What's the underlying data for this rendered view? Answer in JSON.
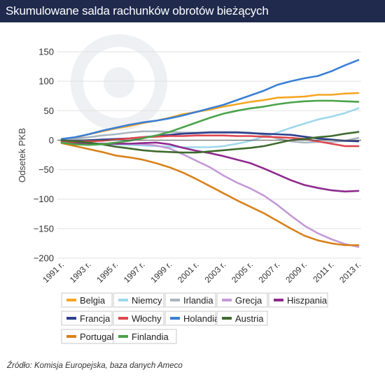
{
  "title": "Skumulowane salda rachunków obrotów bieżących",
  "source": "Źródło: Komisja Europejska, baza danych Ameco",
  "chart_data": {
    "type": "line",
    "ylabel": "Odsetek PKB",
    "xlabel": "",
    "ylim": [
      -200,
      150
    ],
    "yticks": [
      150,
      100,
      50,
      0,
      -50,
      -100,
      -150,
      -200
    ],
    "ytick_labels": [
      "150",
      "100",
      "50",
      "0",
      "−50",
      "−100",
      "−150",
      "−200"
    ],
    "x": [
      1991,
      1992,
      1993,
      1994,
      1995,
      1996,
      1997,
      1998,
      1999,
      2000,
      2001,
      2002,
      2003,
      2004,
      2005,
      2006,
      2007,
      2008,
      2009,
      2010,
      2011,
      2012,
      2013
    ],
    "xticks": [
      1991,
      1993,
      1995,
      1997,
      1999,
      2001,
      2003,
      2005,
      2007,
      2009,
      2011,
      2013
    ],
    "xtick_labels": [
      "1991 r.",
      "1993 r.",
      "1995 r.",
      "1997 r.",
      "1999 r.",
      "2001 r.",
      "2003 r.",
      "2005 r.",
      "2007 r.",
      "2009 r.",
      "2011 r.",
      "2013 r."
    ],
    "grid": true,
    "legend_position": "bottom",
    "series": [
      {
        "name": "Belgia",
        "color": "#f5a623",
        "values": [
          2,
          4,
          10,
          15,
          20,
          24,
          29,
          33,
          38,
          44,
          48,
          52,
          57,
          61,
          65,
          68,
          72,
          73,
          74,
          77,
          77,
          79,
          80
        ]
      },
      {
        "name": "Niemcy",
        "color": "#9ed8ec",
        "values": [
          -2,
          -4,
          -5,
          -6,
          -7,
          -8,
          -9,
          -10,
          -11,
          -12,
          -12,
          -12,
          -10,
          -6,
          -1,
          6,
          13,
          21,
          28,
          35,
          40,
          46,
          54
        ]
      },
      {
        "name": "Irlandia",
        "color": "#a9b5bf",
        "values": [
          0,
          2,
          5,
          8,
          10,
          13,
          15,
          15,
          14,
          13,
          13,
          14,
          14,
          14,
          13,
          9,
          3,
          -2,
          -4,
          -3,
          -3,
          -1,
          4
        ]
      },
      {
        "name": "Grecja",
        "color": "#c49ad6",
        "values": [
          -2,
          -4,
          -5,
          -6,
          -5,
          -6,
          -7,
          -9,
          -14,
          -24,
          -35,
          -46,
          -60,
          -72,
          -82,
          -94,
          -110,
          -128,
          -145,
          -158,
          -168,
          -176,
          -181
        ]
      },
      {
        "name": "Hiszpania",
        "color": "#8e2a8e",
        "values": [
          -3,
          -5,
          -7,
          -6,
          -6,
          -6,
          -5,
          -4,
          -7,
          -13,
          -18,
          -22,
          -27,
          -33,
          -39,
          -48,
          -58,
          -68,
          -76,
          -81,
          -85,
          -87,
          -86
        ]
      },
      {
        "name": "Francja",
        "color": "#2e3f8e",
        "values": [
          -1,
          -1,
          0,
          1,
          2,
          3,
          5,
          7,
          9,
          11,
          12,
          13,
          13,
          13,
          12,
          11,
          10,
          9,
          6,
          3,
          1,
          -1,
          -2
        ]
      },
      {
        "name": "Włochy",
        "color": "#e0464e",
        "values": [
          -2,
          -3,
          -2,
          -1,
          1,
          3,
          5,
          6,
          7,
          7,
          8,
          8,
          8,
          7,
          7,
          6,
          5,
          4,
          2,
          -2,
          -6,
          -10,
          -10
        ]
      },
      {
        "name": "Holandia",
        "color": "#3a7fd4",
        "values": [
          2,
          5,
          10,
          16,
          21,
          26,
          30,
          33,
          37,
          42,
          48,
          54,
          60,
          68,
          76,
          84,
          94,
          100,
          105,
          109,
          117,
          127,
          136
        ]
      },
      {
        "name": "Austria",
        "color": "#3f6b2e",
        "values": [
          0,
          -2,
          -4,
          -7,
          -11,
          -14,
          -17,
          -19,
          -20,
          -21,
          -21,
          -19,
          -17,
          -15,
          -13,
          -10,
          -5,
          0,
          2,
          5,
          7,
          11,
          14
        ]
      },
      {
        "name": "Portugalia",
        "color": "#d9811a",
        "values": [
          -5,
          -10,
          -15,
          -20,
          -26,
          -29,
          -33,
          -39,
          -46,
          -55,
          -66,
          -78,
          -90,
          -102,
          -113,
          -124,
          -137,
          -150,
          -162,
          -170,
          -175,
          -178,
          -178
        ]
      },
      {
        "name": "Finlandia",
        "color": "#4aa34a",
        "values": [
          -4,
          -7,
          -8,
          -7,
          -4,
          -1,
          3,
          8,
          14,
          22,
          30,
          38,
          45,
          50,
          54,
          57,
          61,
          64,
          66,
          67,
          67,
          66,
          65
        ]
      }
    ]
  }
}
